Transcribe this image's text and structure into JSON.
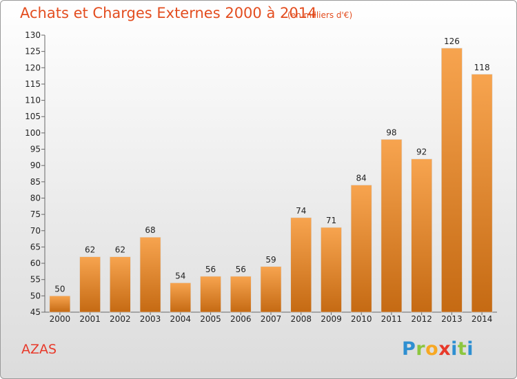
{
  "header": {
    "title": "Achats et Charges Externes 2000 à 2014",
    "subtitle": "(en milliers d'€)"
  },
  "footer": {
    "commune": "AZAS",
    "logo_text": "Proxiti"
  },
  "colors": {
    "title": "#e34d1f",
    "bar_light": "#f7a44f",
    "bar_dark": "#c56a13",
    "commune": "#e8392a"
  },
  "chart_data": {
    "type": "bar",
    "title": "Achats et Charges Externes 2000 à 2014",
    "subtitle": "(en milliers d'€)",
    "categories": [
      "2000",
      "2001",
      "2002",
      "2003",
      "2004",
      "2005",
      "2006",
      "2007",
      "2008",
      "2009",
      "2010",
      "2011",
      "2012",
      "2013",
      "2014"
    ],
    "values": [
      50,
      62,
      62,
      68,
      54,
      56,
      56,
      59,
      74,
      71,
      84,
      98,
      92,
      126,
      118
    ],
    "ylim": [
      45,
      130
    ],
    "yticks": [
      45,
      50,
      55,
      60,
      65,
      70,
      75,
      80,
      85,
      90,
      95,
      100,
      105,
      110,
      115,
      120,
      125,
      130
    ],
    "grid": false,
    "legend": "none"
  }
}
